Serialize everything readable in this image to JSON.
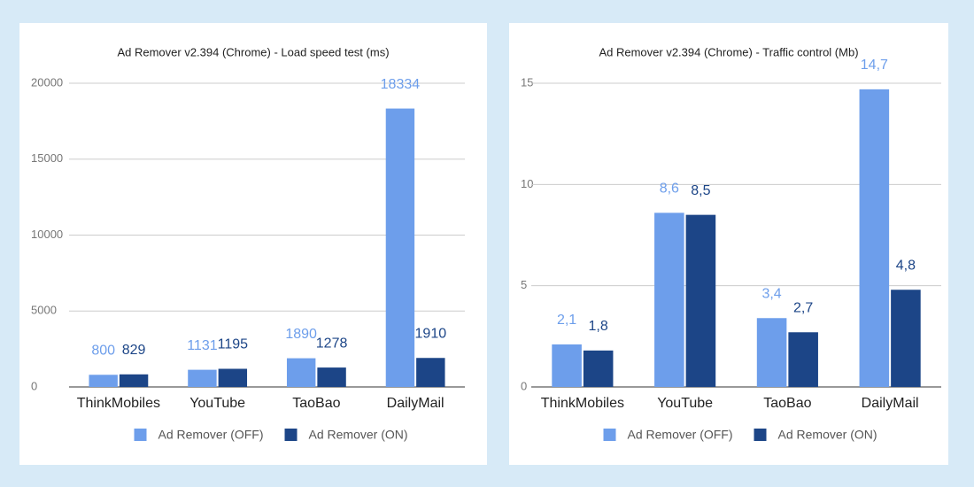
{
  "chart_data": [
    {
      "type": "bar",
      "title": "Ad Remover v2.394 (Chrome) - Load speed test (ms)",
      "categories": [
        "ThinkMobiles",
        "YouTube",
        "TaoBao",
        "DailyMail"
      ],
      "series": [
        {
          "name": "Ad Remover (OFF)",
          "color": "#6d9eeb",
          "values": [
            800,
            1131,
            1890,
            18334
          ]
        },
        {
          "name": "Ad Remover (ON)",
          "color": "#1c4587",
          "values": [
            829,
            1195,
            1278,
            1910
          ]
        }
      ],
      "ylim": [
        0,
        20000
      ],
      "yticks": [
        0,
        5000,
        10000,
        15000,
        20000
      ],
      "grid": true,
      "legend": "bottom"
    },
    {
      "type": "bar",
      "title": "Ad Remover v2.394 (Chrome) - Traffic control (Mb)",
      "categories": [
        "ThinkMobiles",
        "YouTube",
        "TaoBao",
        "DailyMail"
      ],
      "series": [
        {
          "name": "Ad Remover (OFF)",
          "color": "#6d9eeb",
          "values": [
            2.1,
            8.6,
            3.4,
            14.7
          ],
          "value_labels": [
            "2,1",
            "8,6",
            "3,4",
            "14,7"
          ]
        },
        {
          "name": "Ad Remover (ON)",
          "color": "#1c4587",
          "values": [
            1.8,
            8.5,
            2.7,
            4.8
          ],
          "value_labels": [
            "1,8",
            "8,5",
            "2,7",
            "4,8"
          ]
        }
      ],
      "ylim": [
        0,
        15
      ],
      "yticks": [
        0,
        5,
        10,
        15
      ],
      "grid": true,
      "legend": "bottom"
    }
  ]
}
